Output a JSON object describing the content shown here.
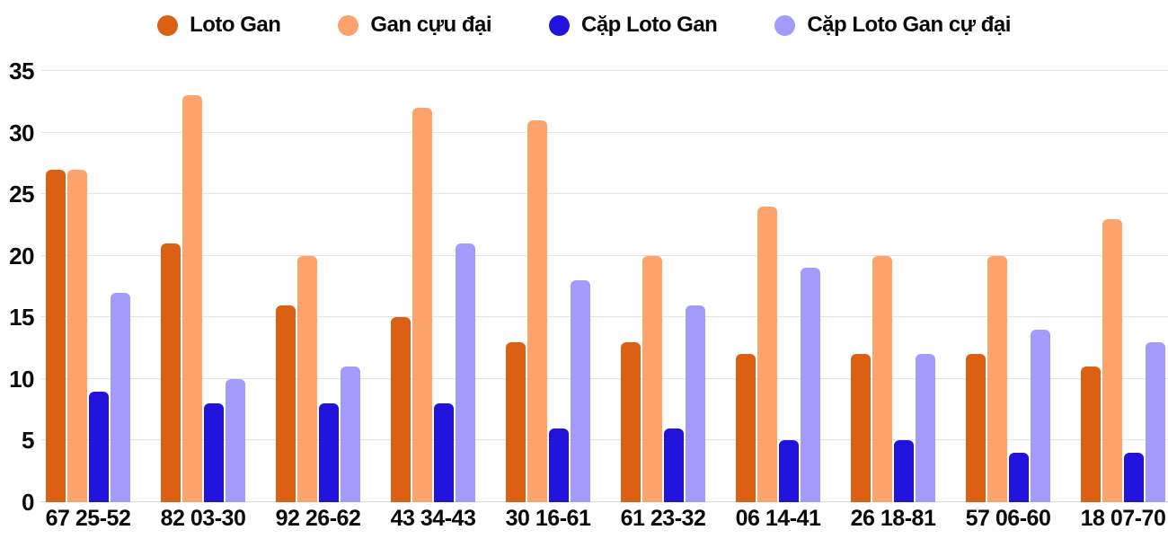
{
  "chart_data": {
    "type": "bar",
    "title": "",
    "xlabel": "",
    "ylabel": "",
    "categories": [
      "67 25-52",
      "82 03-30",
      "92 26-62",
      "43 34-43",
      "30 16-61",
      "61 23-32",
      "06 14-41",
      "26 18-81",
      "57 06-60",
      "18 07-70"
    ],
    "series": [
      {
        "name": "Loto Gan",
        "color": "#DC6013",
        "values": [
          27,
          21,
          16,
          15,
          13,
          13,
          12,
          12,
          12,
          11
        ]
      },
      {
        "name": "Gan cựu đại",
        "color": "#FCA26B",
        "values": [
          27,
          33,
          20,
          32,
          31,
          20,
          24,
          20,
          20,
          23
        ]
      },
      {
        "name": "Cặp Loto Gan",
        "color": "#2213DC",
        "values": [
          9,
          8,
          8,
          8,
          6,
          6,
          5,
          5,
          4,
          4
        ]
      },
      {
        "name": "Cặp Loto Gan cự đại",
        "color": "#A29BFA",
        "values": [
          17,
          10,
          11,
          21,
          18,
          16,
          19,
          12,
          14,
          13
        ]
      }
    ],
    "ylim": [
      0,
      35
    ],
    "yticks": [
      0,
      5,
      10,
      15,
      20,
      25,
      30,
      35
    ],
    "grid": true,
    "legend_position": "top"
  },
  "colors": {
    "background": "#FFFFFF",
    "gridline": "#E3E3E3",
    "axis_text": "#0B0B0B"
  }
}
